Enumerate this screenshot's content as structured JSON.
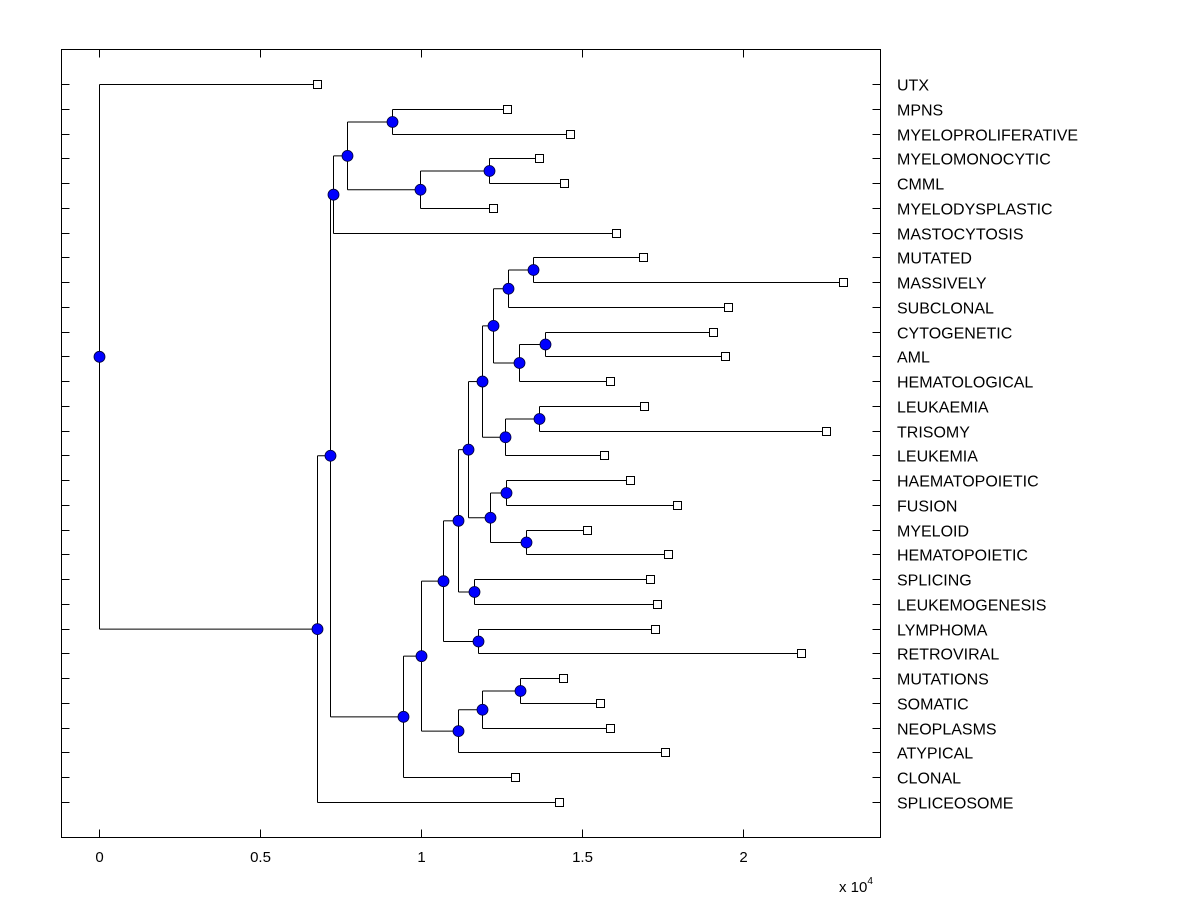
{
  "chart_data": {
    "type": "dendrogram",
    "title": "",
    "xlabel": "",
    "ylabel": "",
    "x_multiplier_label": "x 10",
    "x_multiplier_exponent": "4",
    "xlim": [
      -1150,
      24000
    ],
    "x_ticks": [
      0,
      5000,
      10000,
      15000,
      20000
    ],
    "x_tick_labels": [
      "0",
      "0.5",
      "1",
      "1.5",
      "2"
    ],
    "grid": false,
    "node_color": "#0000ff",
    "leaf_marker": "square",
    "leaves": [
      {
        "id": "UTX",
        "label": "UTX",
        "x": 6770
      },
      {
        "id": "MPNS",
        "label": "MPNS",
        "x": 12670
      },
      {
        "id": "MYELOPROLIFERATIVE",
        "label": "MYELOPROLIFERATIVE",
        "x": 14630
      },
      {
        "id": "MYELOMONOCYTIC",
        "label": "MYELOMONOCYTIC",
        "x": 13660
      },
      {
        "id": "CMML",
        "label": "CMML",
        "x": 14440
      },
      {
        "id": "MYELODYSPLASTIC",
        "label": "MYELODYSPLASTIC",
        "x": 12240
      },
      {
        "id": "MASTOCYTOSIS",
        "label": "MASTOCYTOSIS",
        "x": 16060
      },
      {
        "id": "MUTATED",
        "label": "MUTATED",
        "x": 16890
      },
      {
        "id": "MASSIVELY",
        "label": "MASSIVELY",
        "x": 23100
      },
      {
        "id": "SUBCLONAL",
        "label": "SUBCLONAL",
        "x": 19530
      },
      {
        "id": "CYTOGENETIC",
        "label": "CYTOGENETIC",
        "x": 19070
      },
      {
        "id": "AML",
        "label": "AML",
        "x": 19440
      },
      {
        "id": "HEMATOLOGICAL",
        "label": "HEMATOLOGICAL",
        "x": 15870
      },
      {
        "id": "LEUKAEMIA",
        "label": "LEUKAEMIA",
        "x": 16930
      },
      {
        "id": "TRISOMY",
        "label": "TRISOMY",
        "x": 22580
      },
      {
        "id": "LEUKEMIA",
        "label": "LEUKEMIA",
        "x": 15680
      },
      {
        "id": "HAEMATOPOIETIC",
        "label": "HAEMATOPOIETIC",
        "x": 16490
      },
      {
        "id": "FUSION",
        "label": "FUSION",
        "x": 17950
      },
      {
        "id": "MYELOID",
        "label": "MYELOID",
        "x": 15160
      },
      {
        "id": "HEMATOPOIETIC",
        "label": "HEMATOPOIETIC",
        "x": 17670
      },
      {
        "id": "SPLICING",
        "label": "SPLICING",
        "x": 17110
      },
      {
        "id": "LEUKEMOGENESIS",
        "label": "LEUKEMOGENESIS",
        "x": 17330
      },
      {
        "id": "LYMPHOMA",
        "label": "LYMPHOMA",
        "x": 17270
      },
      {
        "id": "RETROVIRAL",
        "label": "RETROVIRAL",
        "x": 21800
      },
      {
        "id": "MUTATIONS",
        "label": "MUTATIONS",
        "x": 14410
      },
      {
        "id": "SOMATIC",
        "label": "SOMATIC",
        "x": 15560
      },
      {
        "id": "NEOPLASMS",
        "label": "NEOPLASMS",
        "x": 15870
      },
      {
        "id": "ATYPICAL",
        "label": "ATYPICAL",
        "x": 17580
      },
      {
        "id": "CLONAL",
        "label": "CLONAL",
        "x": 12920
      },
      {
        "id": "SPLICEOSOME",
        "label": "SPLICEOSOME",
        "x": 14290
      }
    ],
    "internal_nodes": [
      {
        "id": "n_mpns",
        "x": 9100,
        "children": [
          "MPNS",
          "MYELOPROLIFERATIVE"
        ]
      },
      {
        "id": "n_mm",
        "x": 12110,
        "children": [
          "MYELOMONOCYTIC",
          "CMML"
        ]
      },
      {
        "id": "n_mm2",
        "x": 9970,
        "children": [
          "n_mm",
          "MYELODYSPLASTIC"
        ]
      },
      {
        "id": "n_myelo",
        "x": 7700,
        "children": [
          "n_mpns",
          "n_mm2"
        ]
      },
      {
        "id": "n_mast",
        "x": 7270,
        "children": [
          "n_myelo",
          "MASTOCYTOSIS"
        ]
      },
      {
        "id": "n_mutmas",
        "x": 13480,
        "children": [
          "MUTATED",
          "MASSIVELY"
        ]
      },
      {
        "id": "n_sub",
        "x": 12700,
        "children": [
          "n_mutmas",
          "SUBCLONAL"
        ]
      },
      {
        "id": "n_cyto",
        "x": 13850,
        "children": [
          "CYTOGENETIC",
          "AML"
        ]
      },
      {
        "id": "n_hemat",
        "x": 13040,
        "children": [
          "n_cyto",
          "HEMATOLOGICAL"
        ]
      },
      {
        "id": "n_a",
        "x": 12240,
        "children": [
          "n_sub",
          "n_hemat"
        ]
      },
      {
        "id": "n_leuk",
        "x": 13660,
        "children": [
          "LEUKAEMIA",
          "TRISOMY"
        ]
      },
      {
        "id": "n_leuk2",
        "x": 12610,
        "children": [
          "n_leuk",
          "LEUKEMIA"
        ]
      },
      {
        "id": "n_b",
        "x": 11890,
        "children": [
          "n_a",
          "n_leuk2"
        ]
      },
      {
        "id": "n_haem",
        "x": 12640,
        "children": [
          "HAEMATOPOIETIC",
          "FUSION"
        ]
      },
      {
        "id": "n_my",
        "x": 13260,
        "children": [
          "MYELOID",
          "HEMATOPOIETIC"
        ]
      },
      {
        "id": "n_c",
        "x": 12140,
        "children": [
          "n_haem",
          "n_my"
        ]
      },
      {
        "id": "n_d",
        "x": 11460,
        "children": [
          "n_b",
          "n_c"
        ]
      },
      {
        "id": "n_spl",
        "x": 11650,
        "children": [
          "SPLICING",
          "LEUKEMOGENESIS"
        ]
      },
      {
        "id": "n_e",
        "x": 11150,
        "children": [
          "n_d",
          "n_spl"
        ]
      },
      {
        "id": "n_lym",
        "x": 11770,
        "children": [
          "LYMPHOMA",
          "RETROVIRAL"
        ]
      },
      {
        "id": "n_f",
        "x": 10680,
        "children": [
          "n_e",
          "n_lym"
        ]
      },
      {
        "id": "n_mut",
        "x": 13070,
        "children": [
          "MUTATIONS",
          "SOMATIC"
        ]
      },
      {
        "id": "n_som",
        "x": 11890,
        "children": [
          "n_mut",
          "NEOPLASMS"
        ]
      },
      {
        "id": "n_neo",
        "x": 11150,
        "children": [
          "n_som",
          "ATYPICAL"
        ]
      },
      {
        "id": "n_g",
        "x": 10000,
        "children": [
          "n_f",
          "n_neo"
        ]
      },
      {
        "id": "n_h",
        "x": 9440,
        "children": [
          "n_g",
          "CLONAL"
        ]
      },
      {
        "id": "n_big",
        "x": 7170,
        "children": [
          "n_mast",
          "n_h"
        ]
      },
      {
        "id": "n_top",
        "x": 6770,
        "children": [
          "n_big",
          "SPLICEOSOME"
        ]
      },
      {
        "id": "root",
        "x": 0,
        "children": [
          "UTX",
          "n_top"
        ]
      }
    ]
  }
}
